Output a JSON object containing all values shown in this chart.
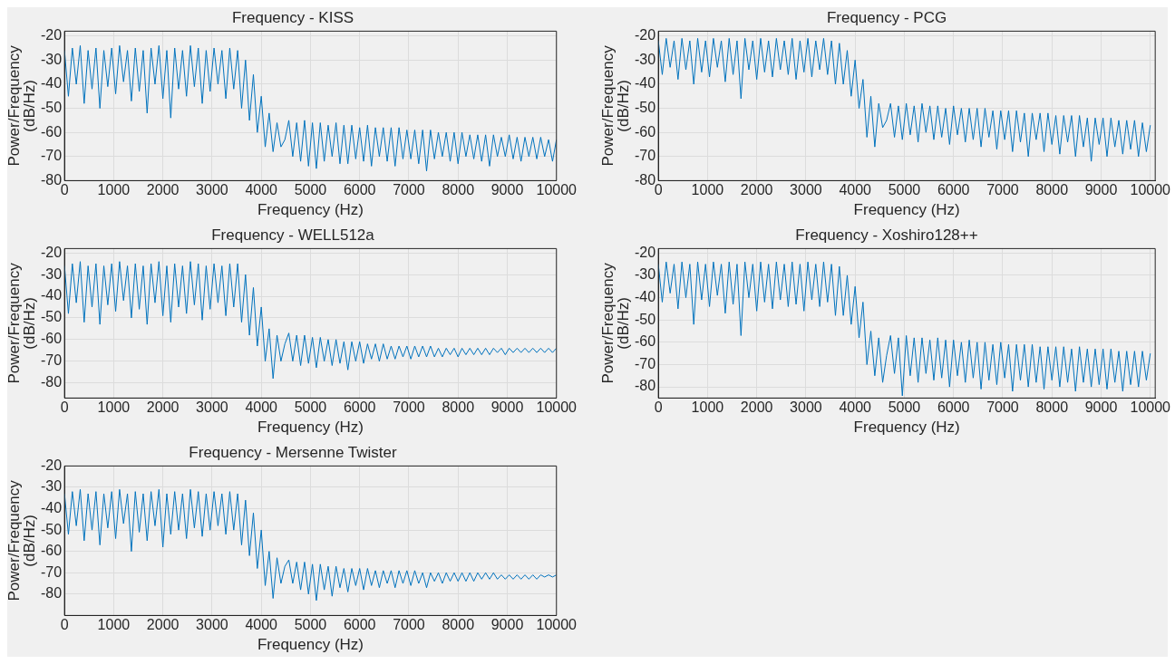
{
  "chart_data": [
    {
      "type": "line",
      "title": "Frequency - KISS",
      "xlabel": "Frequency (Hz)",
      "ylabel": "Power/Frequency\n(dB/Hz)",
      "color": "#0072bd",
      "grid": true,
      "xlim": [
        0,
        10000
      ],
      "ylim": [
        -80,
        -18
      ],
      "xticks": [
        0,
        1000,
        2000,
        3000,
        4000,
        5000,
        6000,
        7000,
        8000,
        9000,
        10000
      ],
      "yticks": [
        -80,
        -70,
        -60,
        -50,
        -40,
        -30,
        -20
      ],
      "x": [
        0,
        80,
        160,
        240,
        320,
        400,
        480,
        560,
        640,
        720,
        800,
        880,
        960,
        1040,
        1120,
        1200,
        1280,
        1360,
        1440,
        1520,
        1600,
        1680,
        1760,
        1840,
        1920,
        2000,
        2080,
        2160,
        2240,
        2320,
        2400,
        2480,
        2560,
        2640,
        2720,
        2800,
        2880,
        2960,
        3040,
        3120,
        3200,
        3280,
        3360,
        3440,
        3520,
        3600,
        3680,
        3760,
        3840,
        3920,
        4000,
        4080,
        4160,
        4240,
        4320,
        4400,
        4480,
        4560,
        4640,
        4720,
        4800,
        4880,
        4960,
        5040,
        5120,
        5200,
        5280,
        5360,
        5440,
        5520,
        5600,
        5680,
        5760,
        5840,
        5920,
        6000,
        6080,
        6160,
        6240,
        6320,
        6400,
        6480,
        6560,
        6640,
        6720,
        6800,
        6880,
        6960,
        7040,
        7120,
        7200,
        7280,
        7360,
        7440,
        7520,
        7600,
        7680,
        7760,
        7840,
        7920,
        8000,
        8080,
        8160,
        8240,
        8320,
        8400,
        8480,
        8560,
        8640,
        8720,
        8800,
        8880,
        8960,
        9040,
        9120,
        9200,
        9280,
        9360,
        9440,
        9520,
        9600,
        9680,
        9760,
        9840,
        9920,
        10000
      ],
      "values": [
        -26,
        -45,
        -25,
        -40,
        -24,
        -48,
        -26,
        -42,
        -25,
        -50,
        -26,
        -41,
        -25,
        -44,
        -24,
        -39,
        -26,
        -47,
        -25,
        -43,
        -26,
        -52,
        -25,
        -40,
        -24,
        -46,
        -26,
        -54,
        -25,
        -42,
        -26,
        -45,
        -24,
        -41,
        -25,
        -48,
        -26,
        -43,
        -25,
        -40,
        -26,
        -46,
        -25,
        -42,
        -26,
        -50,
        -30,
        -55,
        -36,
        -60,
        -45,
        -66,
        -52,
        -68,
        -56,
        -66,
        -63,
        -55,
        -70,
        -56,
        -72,
        -55,
        -74,
        -56,
        -75,
        -56,
        -72,
        -57,
        -70,
        -56,
        -73,
        -57,
        -73,
        -57,
        -71,
        -58,
        -72,
        -57,
        -74,
        -58,
        -70,
        -58,
        -72,
        -58,
        -74,
        -58,
        -71,
        -59,
        -71,
        -59,
        -73,
        -59,
        -76,
        -59,
        -71,
        -60,
        -70,
        -60,
        -72,
        -60,
        -73,
        -60,
        -70,
        -61,
        -71,
        -61,
        -72,
        -61,
        -74,
        -61,
        -70,
        -62,
        -70,
        -61,
        -71,
        -62,
        -72,
        -62,
        -70,
        -62,
        -71,
        -62,
        -70,
        -63,
        -72,
        -63
      ]
    },
    {
      "type": "line",
      "title": "Frequency - PCG",
      "xlabel": "Frequency (Hz)",
      "ylabel": "Power/Frequency\n(dB/Hz)",
      "color": "#0072bd",
      "grid": true,
      "xlim": [
        0,
        10100
      ],
      "ylim": [
        -80,
        -18
      ],
      "xticks": [
        0,
        1000,
        2000,
        3000,
        4000,
        5000,
        6000,
        7000,
        8000,
        9000,
        10000
      ],
      "yticks": [
        -80,
        -70,
        -60,
        -50,
        -40,
        -30,
        -20
      ],
      "x": [
        0,
        80,
        160,
        240,
        320,
        400,
        480,
        560,
        640,
        720,
        800,
        880,
        960,
        1040,
        1120,
        1200,
        1280,
        1360,
        1440,
        1520,
        1600,
        1680,
        1760,
        1840,
        1920,
        2000,
        2080,
        2160,
        2240,
        2320,
        2400,
        2480,
        2560,
        2640,
        2720,
        2800,
        2880,
        2960,
        3040,
        3120,
        3200,
        3280,
        3360,
        3440,
        3520,
        3600,
        3680,
        3760,
        3840,
        3920,
        4000,
        4080,
        4160,
        4240,
        4320,
        4400,
        4480,
        4560,
        4640,
        4720,
        4800,
        4880,
        4960,
        5040,
        5120,
        5200,
        5280,
        5360,
        5440,
        5520,
        5600,
        5680,
        5760,
        5840,
        5920,
        6000,
        6080,
        6160,
        6240,
        6320,
        6400,
        6480,
        6560,
        6640,
        6720,
        6800,
        6880,
        6960,
        7040,
        7120,
        7200,
        7280,
        7360,
        7440,
        7520,
        7600,
        7680,
        7760,
        7840,
        7920,
        8000,
        8080,
        8160,
        8240,
        8320,
        8400,
        8480,
        8560,
        8640,
        8720,
        8800,
        8880,
        8960,
        9040,
        9120,
        9200,
        9280,
        9360,
        9440,
        9520,
        9600,
        9680,
        9760,
        9840,
        9920,
        10000
      ],
      "values": [
        -22,
        -36,
        -21,
        -33,
        -22,
        -38,
        -21,
        -34,
        -22,
        -40,
        -21,
        -35,
        -22,
        -37,
        -21,
        -33,
        -22,
        -39,
        -21,
        -36,
        -22,
        -46,
        -21,
        -34,
        -22,
        -38,
        -21,
        -35,
        -22,
        -37,
        -21,
        -34,
        -22,
        -36,
        -21,
        -38,
        -22,
        -35,
        -21,
        -37,
        -22,
        -34,
        -21,
        -36,
        -22,
        -40,
        -23,
        -40,
        -26,
        -45,
        -30,
        -50,
        -38,
        -62,
        -45,
        -66,
        -48,
        -58,
        -55,
        -48,
        -62,
        -49,
        -63,
        -48,
        -61,
        -49,
        -64,
        -48,
        -60,
        -49,
        -63,
        -49,
        -62,
        -50,
        -65,
        -49,
        -61,
        -50,
        -64,
        -50,
        -63,
        -50,
        -66,
        -50,
        -62,
        -51,
        -67,
        -51,
        -63,
        -51,
        -68,
        -51,
        -64,
        -52,
        -70,
        -52,
        -63,
        -52,
        -68,
        -52,
        -65,
        -53,
        -69,
        -53,
        -64,
        -53,
        -70,
        -53,
        -66,
        -54,
        -72,
        -54,
        -65,
        -54,
        -70,
        -54,
        -66,
        -55,
        -69,
        -55,
        -67,
        -55,
        -70,
        -56,
        -68,
        -57
      ]
    },
    {
      "type": "line",
      "title": "Frequency - WELL512a",
      "xlabel": "Frequency (Hz)",
      "ylabel": "Power/Frequency\n(dB/Hz)",
      "color": "#0072bd",
      "grid": true,
      "xlim": [
        0,
        10000
      ],
      "ylim": [
        -87,
        -18
      ],
      "xticks": [
        0,
        1000,
        2000,
        3000,
        4000,
        5000,
        6000,
        7000,
        8000,
        9000,
        10000
      ],
      "yticks": [
        -80,
        -70,
        -60,
        -50,
        -40,
        -30,
        -20
      ],
      "x": [
        0,
        80,
        160,
        240,
        320,
        400,
        480,
        560,
        640,
        720,
        800,
        880,
        960,
        1040,
        1120,
        1200,
        1280,
        1360,
        1440,
        1520,
        1600,
        1680,
        1760,
        1840,
        1920,
        2000,
        2080,
        2160,
        2240,
        2320,
        2400,
        2480,
        2560,
        2640,
        2720,
        2800,
        2880,
        2960,
        3040,
        3120,
        3200,
        3280,
        3360,
        3440,
        3520,
        3600,
        3680,
        3760,
        3840,
        3920,
        4000,
        4080,
        4160,
        4240,
        4320,
        4400,
        4480,
        4560,
        4640,
        4720,
        4800,
        4880,
        4960,
        5040,
        5120,
        5200,
        5280,
        5360,
        5440,
        5520,
        5600,
        5680,
        5760,
        5840,
        5920,
        6000,
        6080,
        6160,
        6240,
        6320,
        6400,
        6480,
        6560,
        6640,
        6720,
        6800,
        6880,
        6960,
        7040,
        7120,
        7200,
        7280,
        7360,
        7440,
        7520,
        7600,
        7680,
        7760,
        7840,
        7920,
        8000,
        8080,
        8160,
        8240,
        8320,
        8400,
        8480,
        8560,
        8640,
        8720,
        8800,
        8880,
        8960,
        9040,
        9120,
        9200,
        9280,
        9360,
        9440,
        9520,
        9600,
        9680,
        9760,
        9840,
        9920,
        10000
      ],
      "values": [
        -26,
        -48,
        -25,
        -43,
        -24,
        -52,
        -26,
        -45,
        -25,
        -53,
        -26,
        -44,
        -25,
        -47,
        -24,
        -42,
        -26,
        -50,
        -25,
        -46,
        -26,
        -53,
        -25,
        -43,
        -24,
        -49,
        -26,
        -52,
        -25,
        -45,
        -26,
        -48,
        -24,
        -44,
        -25,
        -51,
        -26,
        -46,
        -25,
        -43,
        -26,
        -49,
        -25,
        -45,
        -25,
        -52,
        -30,
        -58,
        -36,
        -63,
        -45,
        -70,
        -55,
        -78,
        -58,
        -70,
        -62,
        -57,
        -70,
        -58,
        -72,
        -58,
        -71,
        -59,
        -73,
        -59,
        -70,
        -60,
        -72,
        -60,
        -71,
        -61,
        -74,
        -61,
        -70,
        -61,
        -71,
        -62,
        -69,
        -62,
        -70,
        -62,
        -69,
        -63,
        -69,
        -63,
        -68,
        -63,
        -69,
        -63,
        -68,
        -63,
        -68,
        -63,
        -68,
        -64,
        -68,
        -64,
        -67,
        -64,
        -68,
        -64,
        -67,
        -64,
        -67,
        -64,
        -67,
        -64,
        -67,
        -64,
        -66,
        -64,
        -67,
        -64,
        -66,
        -64,
        -66,
        -64,
        -66,
        -64,
        -66,
        -64,
        -66,
        -64,
        -66,
        -64
      ]
    },
    {
      "type": "line",
      "title": "Frequency - Xoshiro128++",
      "xlabel": "Frequency (Hz)",
      "ylabel": "Power/Frequency\n(dB/Hz)",
      "color": "#0072bd",
      "grid": true,
      "xlim": [
        0,
        10100
      ],
      "ylim": [
        -85,
        -18
      ],
      "xticks": [
        0,
        1000,
        2000,
        3000,
        4000,
        5000,
        6000,
        7000,
        8000,
        9000,
        10000
      ],
      "yticks": [
        -80,
        -70,
        -60,
        -50,
        -40,
        -30,
        -20
      ],
      "x": [
        0,
        80,
        160,
        240,
        320,
        400,
        480,
        560,
        640,
        720,
        800,
        880,
        960,
        1040,
        1120,
        1200,
        1280,
        1360,
        1440,
        1520,
        1600,
        1680,
        1760,
        1840,
        1920,
        2000,
        2080,
        2160,
        2240,
        2320,
        2400,
        2480,
        2560,
        2640,
        2720,
        2800,
        2880,
        2960,
        3040,
        3120,
        3200,
        3280,
        3360,
        3440,
        3520,
        3600,
        3680,
        3760,
        3840,
        3920,
        4000,
        4080,
        4160,
        4240,
        4320,
        4400,
        4480,
        4560,
        4640,
        4720,
        4800,
        4880,
        4960,
        5040,
        5120,
        5200,
        5280,
        5360,
        5440,
        5520,
        5600,
        5680,
        5760,
        5840,
        5920,
        6000,
        6080,
        6160,
        6240,
        6320,
        6400,
        6480,
        6560,
        6640,
        6720,
        6800,
        6880,
        6960,
        7040,
        7120,
        7200,
        7280,
        7360,
        7440,
        7520,
        7600,
        7680,
        7760,
        7840,
        7920,
        8000,
        8080,
        8160,
        8240,
        8320,
        8400,
        8480,
        8560,
        8640,
        8720,
        8800,
        8880,
        8960,
        9040,
        9120,
        9200,
        9280,
        9360,
        9440,
        9520,
        9600,
        9680,
        9760,
        9840,
        9920,
        10000
      ],
      "values": [
        -25,
        -42,
        -24,
        -38,
        -25,
        -45,
        -24,
        -40,
        -25,
        -52,
        -24,
        -41,
        -25,
        -44,
        -24,
        -39,
        -25,
        -47,
        -24,
        -43,
        -25,
        -57,
        -24,
        -40,
        -25,
        -46,
        -24,
        -42,
        -25,
        -45,
        -24,
        -41,
        -25,
        -44,
        -24,
        -43,
        -25,
        -46,
        -24,
        -41,
        -25,
        -44,
        -24,
        -42,
        -25,
        -48,
        -26,
        -48,
        -30,
        -52,
        -35,
        -58,
        -42,
        -70,
        -55,
        -75,
        -58,
        -78,
        -66,
        -57,
        -74,
        -58,
        -84,
        -57,
        -75,
        -58,
        -78,
        -58,
        -74,
        -59,
        -77,
        -58,
        -76,
        -59,
        -80,
        -59,
        -75,
        -60,
        -78,
        -59,
        -76,
        -60,
        -81,
        -60,
        -77,
        -61,
        -79,
        -60,
        -76,
        -61,
        -82,
        -61,
        -77,
        -61,
        -80,
        -61,
        -78,
        -62,
        -81,
        -62,
        -77,
        -62,
        -80,
        -62,
        -78,
        -63,
        -82,
        -62,
        -78,
        -63,
        -80,
        -63,
        -79,
        -63,
        -81,
        -63,
        -78,
        -64,
        -82,
        -64,
        -79,
        -64,
        -80,
        -64,
        -77,
        -65
      ]
    },
    {
      "type": "line",
      "title": "Frequency - Mersenne Twister",
      "xlabel": "Frequency (Hz)",
      "ylabel": "Power/Frequency\n(dB/Hz)",
      "color": "#0072bd",
      "grid": true,
      "xlim": [
        0,
        10000
      ],
      "ylim": [
        -90,
        -20
      ],
      "xticks": [
        0,
        1000,
        2000,
        3000,
        4000,
        5000,
        6000,
        7000,
        8000,
        9000,
        10000
      ],
      "yticks": [
        -80,
        -70,
        -60,
        -50,
        -40,
        -30,
        -20
      ],
      "x": [
        0,
        80,
        160,
        240,
        320,
        400,
        480,
        560,
        640,
        720,
        800,
        880,
        960,
        1040,
        1120,
        1200,
        1280,
        1360,
        1440,
        1520,
        1600,
        1680,
        1760,
        1840,
        1920,
        2000,
        2080,
        2160,
        2240,
        2320,
        2400,
        2480,
        2560,
        2640,
        2720,
        2800,
        2880,
        2960,
        3040,
        3120,
        3200,
        3280,
        3360,
        3440,
        3520,
        3600,
        3680,
        3760,
        3840,
        3920,
        4000,
        4080,
        4160,
        4240,
        4320,
        4400,
        4480,
        4560,
        4640,
        4720,
        4800,
        4880,
        4960,
        5040,
        5120,
        5200,
        5280,
        5360,
        5440,
        5520,
        5600,
        5680,
        5760,
        5840,
        5920,
        6000,
        6080,
        6160,
        6240,
        6320,
        6400,
        6480,
        6560,
        6640,
        6720,
        6800,
        6880,
        6960,
        7040,
        7120,
        7200,
        7280,
        7360,
        7440,
        7520,
        7600,
        7680,
        7760,
        7840,
        7920,
        8000,
        8080,
        8160,
        8240,
        8320,
        8400,
        8480,
        8560,
        8640,
        8720,
        8800,
        8880,
        8960,
        9040,
        9120,
        9200,
        9280,
        9360,
        9440,
        9520,
        9600,
        9680,
        9760,
        9840,
        9920,
        10000
      ],
      "values": [
        -33,
        -52,
        -32,
        -48,
        -31,
        -55,
        -33,
        -50,
        -32,
        -57,
        -33,
        -49,
        -32,
        -54,
        -31,
        -47,
        -33,
        -60,
        -32,
        -51,
        -33,
        -55,
        -32,
        -48,
        -31,
        -58,
        -33,
        -52,
        -32,
        -50,
        -33,
        -54,
        -31,
        -49,
        -32,
        -53,
        -33,
        -50,
        -32,
        -48,
        -33,
        -52,
        -32,
        -50,
        -33,
        -57,
        -36,
        -62,
        -42,
        -68,
        -50,
        -76,
        -60,
        -82,
        -63,
        -75,
        -67,
        -64,
        -75,
        -65,
        -78,
        -65,
        -80,
        -66,
        -83,
        -66,
        -78,
        -67,
        -81,
        -67,
        -77,
        -68,
        -79,
        -68,
        -76,
        -68,
        -78,
        -68,
        -76,
        -69,
        -77,
        -69,
        -75,
        -69,
        -77,
        -69,
        -75,
        -69,
        -76,
        -69,
        -75,
        -70,
        -77,
        -70,
        -74,
        -70,
        -75,
        -70,
        -74,
        -70,
        -74,
        -70,
        -74,
        -70,
        -74,
        -70,
        -73,
        -70,
        -73,
        -70,
        -73,
        -71,
        -73,
        -71,
        -73,
        -71,
        -73,
        -71,
        -73,
        -71,
        -73,
        -71,
        -72,
        -71,
        -72,
        -71
      ]
    }
  ]
}
